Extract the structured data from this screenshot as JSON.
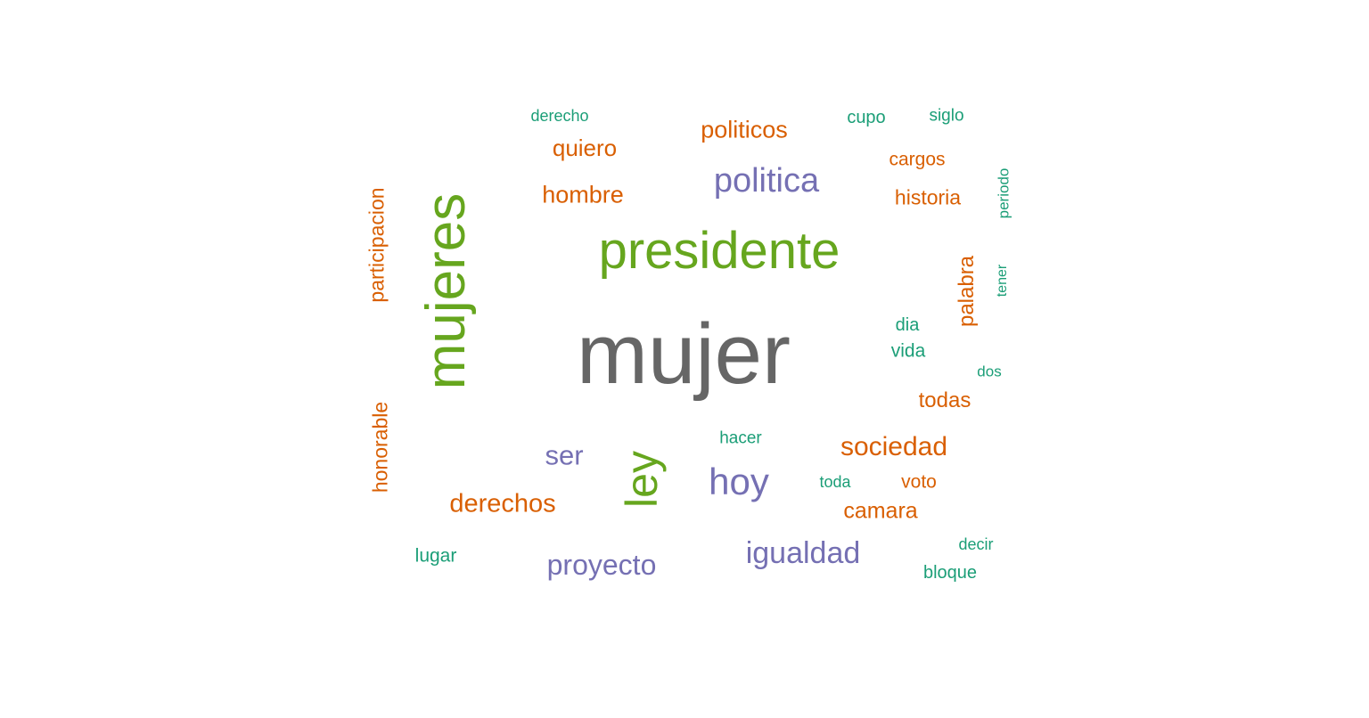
{
  "palette": {
    "gray": "#666666",
    "green": "#66a61e",
    "purple": "#7570b3",
    "orange": "#d95f02",
    "teal": "#1b9e77"
  },
  "words": {
    "mujer": {
      "text": "mujer",
      "color": "gray"
    },
    "mujeres": {
      "text": "mujeres",
      "color": "green"
    },
    "presidente": {
      "text": "presidente",
      "color": "green"
    },
    "ley": {
      "text": "ley",
      "color": "green"
    },
    "politica": {
      "text": "politica",
      "color": "purple"
    },
    "hoy": {
      "text": "hoy",
      "color": "purple"
    },
    "igualdad": {
      "text": "igualdad",
      "color": "purple"
    },
    "proyecto": {
      "text": "proyecto",
      "color": "purple"
    },
    "ser": {
      "text": "ser",
      "color": "purple"
    },
    "politicos": {
      "text": "politicos",
      "color": "orange"
    },
    "quiero": {
      "text": "quiero",
      "color": "orange"
    },
    "hombre": {
      "text": "hombre",
      "color": "orange"
    },
    "cargos": {
      "text": "cargos",
      "color": "orange"
    },
    "historia": {
      "text": "historia",
      "color": "orange"
    },
    "participacion": {
      "text": "participacion",
      "color": "orange"
    },
    "palabra": {
      "text": "palabra",
      "color": "orange"
    },
    "todas": {
      "text": "todas",
      "color": "orange"
    },
    "sociedad": {
      "text": "sociedad",
      "color": "orange"
    },
    "derechos": {
      "text": "derechos",
      "color": "orange"
    },
    "honorable": {
      "text": "honorable",
      "color": "orange"
    },
    "voto": {
      "text": "voto",
      "color": "orange"
    },
    "camara": {
      "text": "camara",
      "color": "orange"
    },
    "derecho": {
      "text": "derecho",
      "color": "teal"
    },
    "cupo": {
      "text": "cupo",
      "color": "teal"
    },
    "siglo": {
      "text": "siglo",
      "color": "teal"
    },
    "periodo": {
      "text": "periodo",
      "color": "teal"
    },
    "tener": {
      "text": "tener",
      "color": "teal"
    },
    "dia": {
      "text": "dia",
      "color": "teal"
    },
    "vida": {
      "text": "vida",
      "color": "teal"
    },
    "dos": {
      "text": "dos",
      "color": "teal"
    },
    "hacer": {
      "text": "hacer",
      "color": "teal"
    },
    "toda": {
      "text": "toda",
      "color": "teal"
    },
    "decir": {
      "text": "decir",
      "color": "teal"
    },
    "bloque": {
      "text": "bloque",
      "color": "teal"
    },
    "lugar": {
      "text": "lugar",
      "color": "teal"
    }
  }
}
